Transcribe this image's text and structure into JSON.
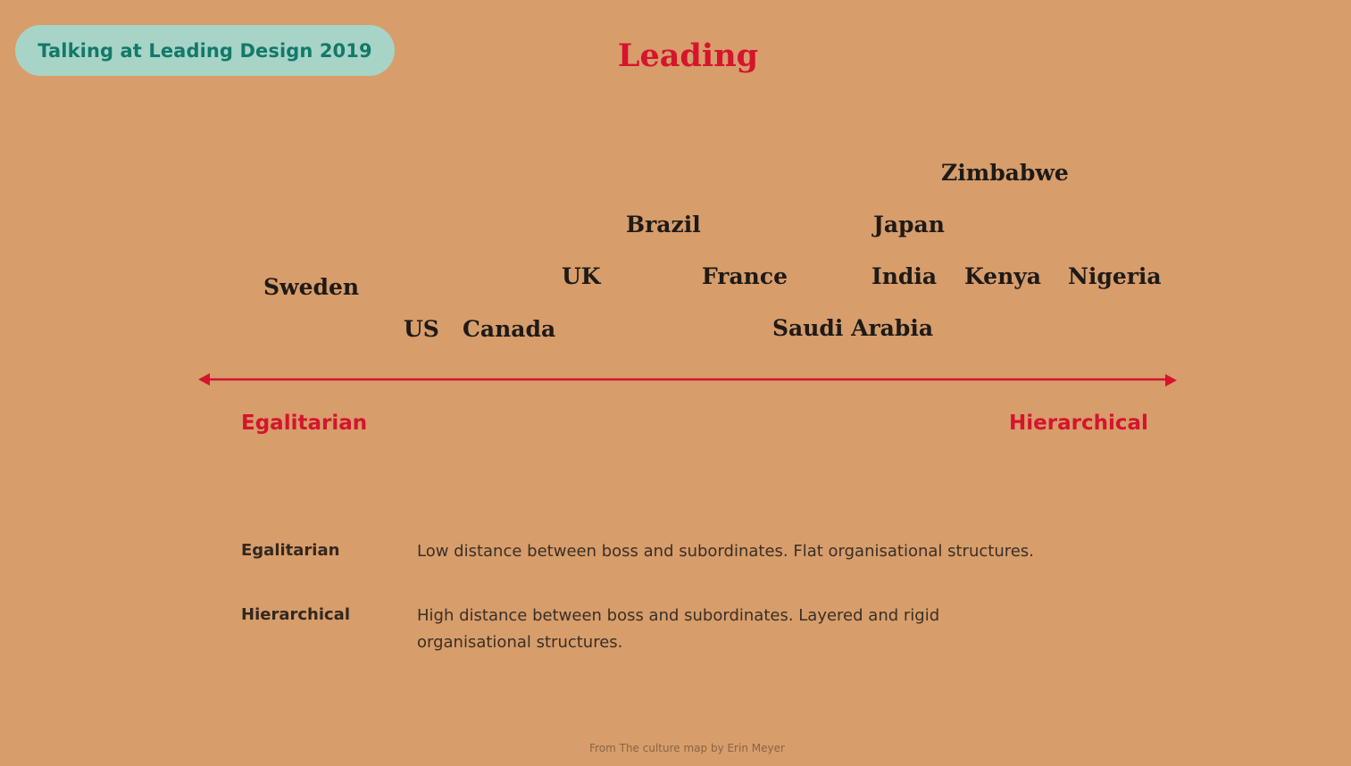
{
  "badge": {
    "label": "Talking at Leading Design 2019"
  },
  "slide": {
    "title": "Leading"
  },
  "scale": {
    "left_pole": "Egalitarian",
    "right_pole": "Hierarchical",
    "axis_color": "#d5142d",
    "countries": [
      "Sweden",
      "US",
      "Canada",
      "UK",
      "Brazil",
      "France",
      "Saudi Arabia",
      "Japan",
      "India",
      "Zimbabwe",
      "Kenya",
      "Nigeria"
    ]
  },
  "definitions": [
    {
      "term": "Egalitarian",
      "text": "Low distance between boss and subordinates. Flat organisational structures."
    },
    {
      "term": "Hierarchical",
      "text": "High distance between boss and subordinates. Layered and rigid organisational structures."
    }
  ],
  "footer": {
    "source": "From The culture map by Erin Meyer"
  },
  "colors": {
    "background": "#d79d6b",
    "accent": "#d5142d",
    "badge_bg": "#a7d4c6",
    "badge_text": "#12796a"
  }
}
